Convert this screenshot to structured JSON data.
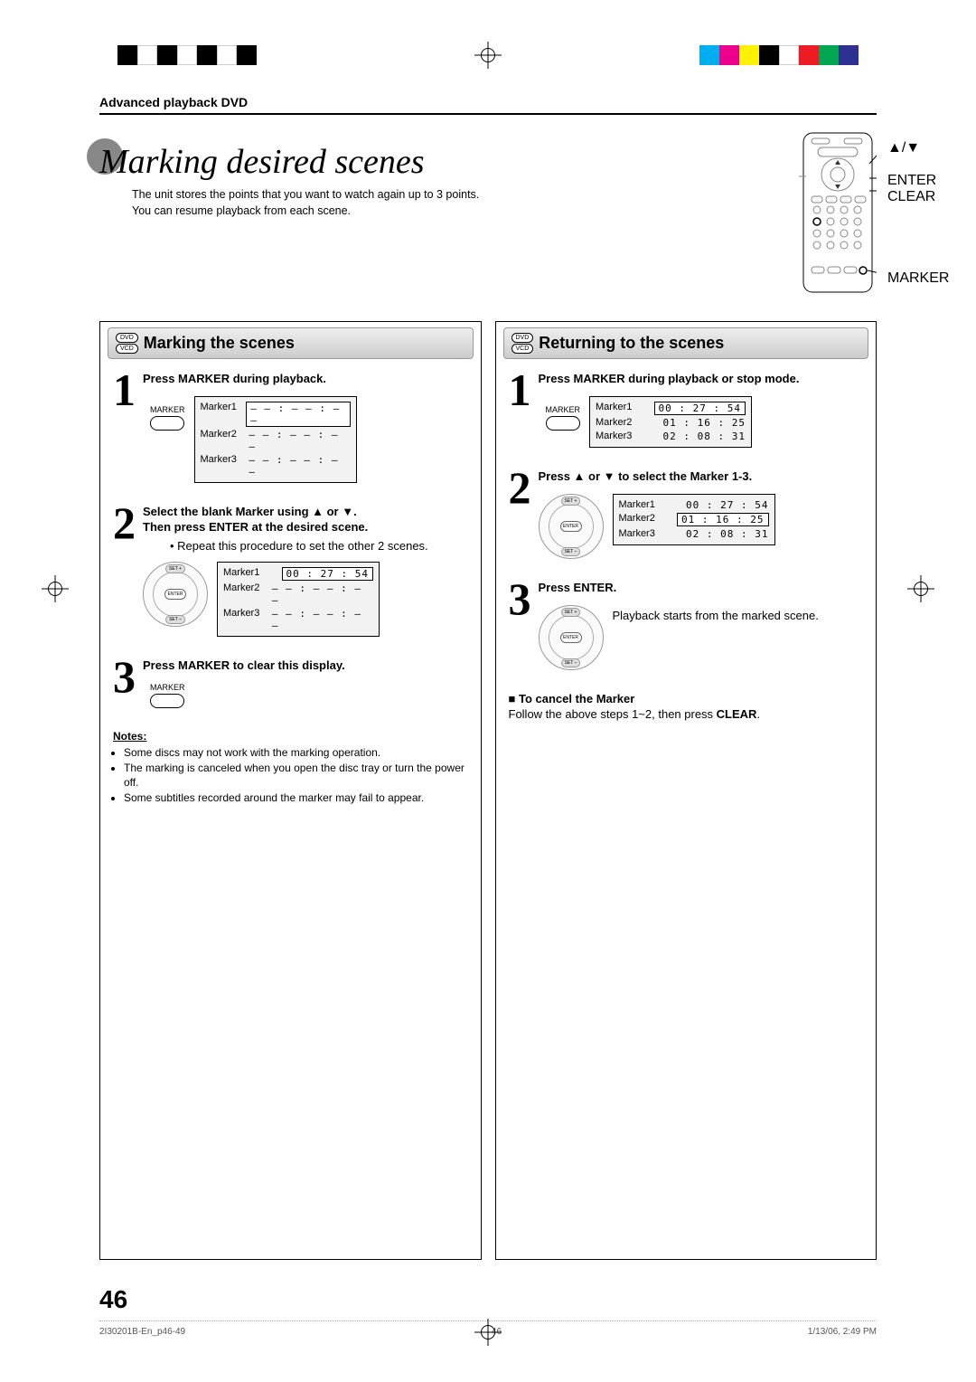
{
  "print_marks": {
    "left_blocks": [
      "#000000",
      "#ffffff",
      "#000000",
      "#ffffff",
      "#000000",
      "#ffffff",
      "#000000"
    ],
    "right_blocks": [
      "#00aeef",
      "#ec008c",
      "#fff200",
      "#000000",
      "#ffffff",
      "#ed1c24",
      "#00a651",
      "#2e3192"
    ]
  },
  "header": {
    "section": "Advanced playback DVD",
    "title": "Marking desired scenes",
    "subtitle_line1": "The unit stores the points that you want to watch again up to 3 points.",
    "subtitle_line2": "You can resume playback from each scene."
  },
  "remote_labels": {
    "arrows": "▲/▼",
    "enter": "ENTER",
    "clear": "CLEAR",
    "marker": "MARKER"
  },
  "disc_badges": {
    "dvd": "DVD",
    "vcd": "VCD"
  },
  "left_column": {
    "heading": "Marking the scenes",
    "step1": {
      "num": "1",
      "title": "Press MARKER during playback.",
      "marker_label": "MARKER",
      "table": {
        "rows": [
          {
            "name": "Marker1",
            "value": "– – : – – : – –",
            "selected": true
          },
          {
            "name": "Marker2",
            "value": "– – : – – : – –",
            "selected": false
          },
          {
            "name": "Marker3",
            "value": "– – : – – : – –",
            "selected": false
          }
        ]
      }
    },
    "step2": {
      "num": "2",
      "title_line1": "Select the blank Marker using ▲ or ▼.",
      "title_line2": "Then press ENTER at the desired scene.",
      "bullet": "• Repeat this procedure to set the other 2 scenes.",
      "dpad": {
        "set_plus": "SET +",
        "set_minus": "SET –",
        "enter": "ENTER"
      },
      "table": {
        "rows": [
          {
            "name": "Marker1",
            "value": "00 : 27 : 54",
            "selected": true
          },
          {
            "name": "Marker2",
            "value": "– – : – – : – –",
            "selected": false
          },
          {
            "name": "Marker3",
            "value": "– – : – – : – –",
            "selected": false
          }
        ]
      }
    },
    "step3": {
      "num": "3",
      "title": "Press MARKER to clear this display.",
      "marker_label": "MARKER"
    },
    "notes_label": "Notes:",
    "notes": [
      "Some discs may not work with the marking operation.",
      "The marking is canceled when you open the disc tray or turn the power off.",
      "Some subtitles recorded around the marker may fail to appear."
    ]
  },
  "right_column": {
    "heading": "Returning to the scenes",
    "step1": {
      "num": "1",
      "title": "Press MARKER during playback or stop mode.",
      "marker_label": "MARKER",
      "table": {
        "rows": [
          {
            "name": "Marker1",
            "value": "00 : 27 : 54",
            "selected": true
          },
          {
            "name": "Marker2",
            "value": "01 : 16 : 25",
            "selected": false
          },
          {
            "name": "Marker3",
            "value": "02 : 08 : 31",
            "selected": false
          }
        ]
      }
    },
    "step2": {
      "num": "2",
      "title": "Press ▲ or ▼ to select the Marker 1-3.",
      "dpad": {
        "set_plus": "SET +",
        "set_minus": "SET –",
        "enter": "ENTER"
      },
      "table": {
        "rows": [
          {
            "name": "Marker1",
            "value": "00 : 27 : 54",
            "selected": false
          },
          {
            "name": "Marker2",
            "value": "01 : 16 : 25",
            "selected": true
          },
          {
            "name": "Marker3",
            "value": "02 : 08 : 31",
            "selected": false
          }
        ]
      }
    },
    "step3": {
      "num": "3",
      "title": "Press ENTER.",
      "text": "Playback starts from the marked scene.",
      "dpad": {
        "set_plus": "SET +",
        "set_minus": "SET –",
        "enter": "ENTER"
      }
    },
    "cancel_heading": "To cancel the Marker",
    "cancel_text_pre": "Follow the above steps 1~2, then press ",
    "cancel_text_bold": "CLEAR",
    "cancel_text_post": "."
  },
  "page_number": "46",
  "footer": {
    "left": "2I30201B-En_p46-49",
    "mid": "46",
    "right": "1/13/06, 2:49 PM"
  }
}
